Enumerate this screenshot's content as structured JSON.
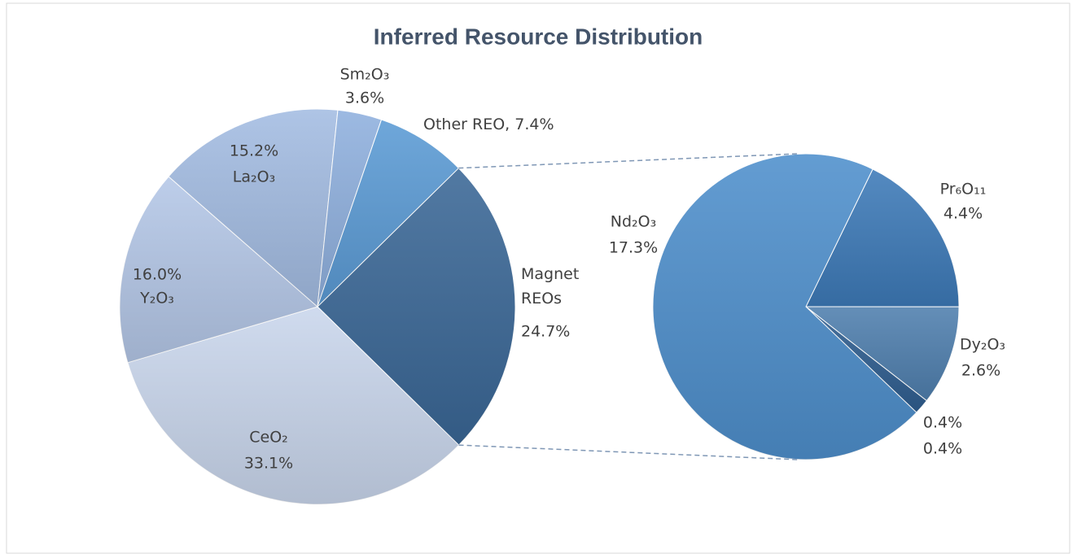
{
  "chart_data": [
    {
      "type": "pie",
      "title": "Inferred Resource Distribution",
      "categories": [
        "Magnet REOs",
        "CeO₂",
        "Y₂O₃",
        "La₂O₃",
        "Sm₂O₃",
        "Other REO"
      ],
      "values": [
        24.7,
        33.1,
        16.0,
        15.2,
        3.6,
        7.4
      ],
      "value_labels": [
        "24.7%",
        "33.1%",
        "16.0%",
        "15.2%",
        "3.6%",
        "7.4%"
      ],
      "colors": [
        "#3a6796",
        "#c9d6ec",
        "#b4c7e7",
        "#a3bce2",
        "#8fb0de",
        "#5b9bd5"
      ],
      "label_separator": ", "
    },
    {
      "type": "pie",
      "categories": [
        "Pr₆O₁₁",
        "Dy₂O₃",
        "0.4%",
        "Nd₂O₃"
      ],
      "values": [
        4.4,
        2.6,
        0.4,
        17.3
      ],
      "value_labels": [
        "4.4%",
        "2.6%",
        "0.4%",
        "17.3%"
      ],
      "colors": [
        "#3d7ab8",
        "#4f7fae",
        "#2f5e90",
        "#4e8fcc"
      ]
    }
  ]
}
